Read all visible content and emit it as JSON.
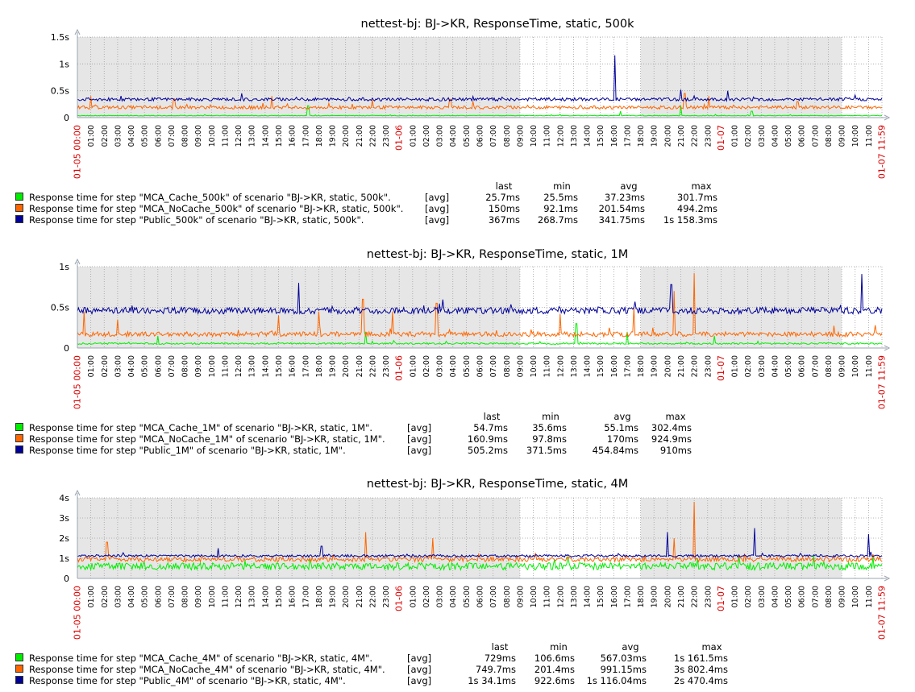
{
  "chart_data": [
    {
      "type": "line",
      "title": "nettest-bj: BJ->KR, ResponseTime, static, 500k",
      "y_ticks": [
        "0",
        "0.5s",
        "1s",
        "1.5s"
      ],
      "ylim": [
        0,
        1.5
      ],
      "y_unit": "s",
      "x_range": [
        "01-05 00:00",
        "01-07 11:59"
      ],
      "x_tick_labels": [
        "01-05 00:00",
        "01:00",
        "02:00",
        "03:00",
        "04:00",
        "05:00",
        "06:00",
        "07:00",
        "08:00",
        "09:00",
        "10:00",
        "11:00",
        "12:00",
        "13:00",
        "14:00",
        "15:00",
        "16:00",
        "17:00",
        "18:00",
        "19:00",
        "20:00",
        "21:00",
        "22:00",
        "23:00",
        "01-06",
        "01:00",
        "02:00",
        "03:00",
        "04:00",
        "05:00",
        "06:00",
        "07:00",
        "08:00",
        "09:00",
        "10:00",
        "11:00",
        "12:00",
        "13:00",
        "14:00",
        "15:00",
        "16:00",
        "17:00",
        "18:00",
        "19:00",
        "20:00",
        "21:00",
        "22:00",
        "23:00",
        "01-07",
        "01:00",
        "02:00",
        "03:00",
        "04:00",
        "05:00",
        "06:00",
        "07:00",
        "08:00",
        "09:00",
        "10:00",
        "11:00",
        "01-07 11:59"
      ],
      "grid": true,
      "shaded_periods": [
        [
          "01-05 00:00",
          "01-06 09:00"
        ],
        [
          "01-06 18:00",
          "01-07 09:00"
        ]
      ],
      "legend_headers": [
        "last",
        "min",
        "avg",
        "max"
      ],
      "series": [
        {
          "name": "Response time for step \"MCA_Cache_500k\" of scenario \"BJ->KR, static, 500k\".",
          "color": "#00ee00",
          "func": "[avg]",
          "last": "25.7ms",
          "min": "25.5ms",
          "avg": "37.23ms",
          "max": "301.7ms",
          "base": 0.037,
          "noise": 0.006,
          "spikes": [
            [
              17.2,
              0.22
            ],
            [
              40.5,
              0.12
            ],
            [
              45.0,
              0.22
            ],
            [
              50.3,
              0.12
            ]
          ]
        },
        {
          "name": "Response time for step \"MCA_NoCache_500k\" of scenario \"BJ->KR, static, 500k\".",
          "color": "#ff6600",
          "func": "[avg]",
          "last": "150ms",
          "min": "92.1ms",
          "avg": "201.54ms",
          "max": "494.2ms",
          "base": 0.19,
          "noise": 0.03,
          "spikes": [
            [
              1.0,
              0.4
            ],
            [
              7.2,
              0.35
            ],
            [
              14.5,
              0.4
            ],
            [
              22.0,
              0.33
            ],
            [
              27.8,
              0.34
            ],
            [
              45.3,
              0.45
            ],
            [
              47.1,
              0.4
            ],
            [
              53.7,
              0.3
            ]
          ]
        },
        {
          "name": "Response time for step \"Public_500k\" of scenario \"BJ->KR, static, 500k\".",
          "color": "#000099",
          "func": "[avg]",
          "last": "367ms",
          "min": "268.7ms",
          "avg": "341.75ms",
          "max": "1s 158.3ms",
          "base": 0.34,
          "noise": 0.03,
          "spikes": [
            [
              40.1,
              1.16
            ],
            [
              45.0,
              0.52
            ],
            [
              48.5,
              0.5
            ],
            [
              58.0,
              0.42
            ]
          ]
        }
      ]
    },
    {
      "type": "line",
      "title": "nettest-bj: BJ->KR, ResponseTime, static, 1M",
      "y_ticks": [
        "0",
        "0.5s",
        "1s"
      ],
      "ylim": [
        0,
        1.2
      ],
      "y_unit": "s",
      "x_range": [
        "01-05 00:00",
        "01-07 11:59"
      ],
      "x_tick_labels": [
        "01-05 00:00",
        "01:00",
        "02:00",
        "03:00",
        "04:00",
        "05:00",
        "06:00",
        "07:00",
        "08:00",
        "09:00",
        "10:00",
        "11:00",
        "12:00",
        "13:00",
        "14:00",
        "15:00",
        "16:00",
        "17:00",
        "18:00",
        "19:00",
        "20:00",
        "21:00",
        "22:00",
        "23:00",
        "01-06",
        "01:00",
        "02:00",
        "03:00",
        "04:00",
        "05:00",
        "06:00",
        "07:00",
        "08:00",
        "09:00",
        "10:00",
        "11:00",
        "12:00",
        "13:00",
        "14:00",
        "15:00",
        "16:00",
        "17:00",
        "18:00",
        "19:00",
        "20:00",
        "21:00",
        "22:00",
        "23:00",
        "01-07",
        "01:00",
        "02:00",
        "03:00",
        "04:00",
        "05:00",
        "06:00",
        "07:00",
        "08:00",
        "09:00",
        "10:00",
        "11:00",
        "01-07 11:59"
      ],
      "grid": true,
      "shaded_periods": [
        [
          "01-05 00:00",
          "01-06 09:00"
        ],
        [
          "01-06 18:00",
          "01-07 09:00"
        ]
      ],
      "legend_headers": [
        "last",
        "min",
        "avg",
        "max"
      ],
      "series": [
        {
          "name": "Response time for step \"MCA_Cache_1M\" of scenario \"BJ->KR, static, 1M\".",
          "color": "#00ee00",
          "func": "[avg]",
          "last": "54.7ms",
          "min": "35.6ms",
          "avg": "55.1ms",
          "max": "302.4ms",
          "base": 0.055,
          "noise": 0.01,
          "spikes": [
            [
              6.0,
              0.15
            ],
            [
              21.5,
              0.2
            ],
            [
              37.2,
              0.3
            ],
            [
              41.0,
              0.2
            ],
            [
              47.5,
              0.15
            ]
          ]
        },
        {
          "name": "Response time for step \"MCA_NoCache_1M\" of scenario \"BJ->KR, static, 1M\".",
          "color": "#ff6600",
          "func": "[avg]",
          "last": "160.9ms",
          "min": "97.8ms",
          "avg": "170ms",
          "max": "924.9ms",
          "base": 0.17,
          "noise": 0.03,
          "spikes": [
            [
              0.5,
              0.45
            ],
            [
              3.0,
              0.35
            ],
            [
              15.0,
              0.4
            ],
            [
              18.0,
              0.45
            ],
            [
              21.3,
              0.6
            ],
            [
              23.5,
              0.45
            ],
            [
              26.8,
              0.55
            ],
            [
              36.0,
              0.42
            ],
            [
              41.5,
              0.5
            ],
            [
              44.5,
              0.7
            ],
            [
              46.0,
              0.92
            ],
            [
              59.5,
              0.28
            ]
          ]
        },
        {
          "name": "Response time for step \"Public_1M\" of scenario \"BJ->KR, static, 1M\".",
          "color": "#000099",
          "func": "[avg]",
          "last": "505.2ms",
          "min": "371.5ms",
          "avg": "454.84ms",
          "max": "910ms",
          "base": 0.46,
          "noise": 0.04,
          "spikes": [
            [
              16.5,
              0.8
            ],
            [
              44.3,
              0.78
            ],
            [
              58.5,
              0.91
            ]
          ]
        }
      ]
    },
    {
      "type": "line",
      "title": "nettest-bj: BJ->KR, ResponseTime, static, 4M",
      "y_ticks": [
        "0",
        "1s",
        "2s",
        "3s",
        "4s"
      ],
      "ylim": [
        0,
        4
      ],
      "y_unit": "s",
      "x_range": [
        "01-05 00:00",
        "01-07 11:59"
      ],
      "x_tick_labels": [
        "01-05 00:00",
        "01:00",
        "02:00",
        "03:00",
        "04:00",
        "05:00",
        "06:00",
        "07:00",
        "08:00",
        "09:00",
        "10:00",
        "11:00",
        "12:00",
        "13:00",
        "14:00",
        "15:00",
        "16:00",
        "17:00",
        "18:00",
        "19:00",
        "20:00",
        "21:00",
        "22:00",
        "23:00",
        "01-06",
        "01:00",
        "02:00",
        "03:00",
        "04:00",
        "05:00",
        "06:00",
        "07:00",
        "08:00",
        "09:00",
        "10:00",
        "11:00",
        "12:00",
        "13:00",
        "14:00",
        "15:00",
        "16:00",
        "17:00",
        "18:00",
        "19:00",
        "20:00",
        "21:00",
        "22:00",
        "23:00",
        "01-07",
        "01:00",
        "02:00",
        "03:00",
        "04:00",
        "05:00",
        "06:00",
        "07:00",
        "08:00",
        "09:00",
        "10:00",
        "11:00",
        "01-07 11:59"
      ],
      "grid": true,
      "shaded_periods": [
        [
          "01-05 00:00",
          "01-06 09:00"
        ],
        [
          "01-06 18:00",
          "01-07 09:00"
        ]
      ],
      "legend_headers": [
        "last",
        "min",
        "avg",
        "max"
      ],
      "series": [
        {
          "name": "Response time for step \"MCA_Cache_4M\" of scenario \"BJ->KR, static, 4M\".",
          "color": "#00ee00",
          "func": "[avg]",
          "last": "729ms",
          "min": "106.6ms",
          "avg": "567.03ms",
          "max": "1s 161.5ms",
          "base": 0.6,
          "noise": 0.18,
          "spikes": []
        },
        {
          "name": "Response time for step \"MCA_NoCache_4M\" of scenario \"BJ->KR, static, 4M\".",
          "color": "#ff6600",
          "func": "[avg]",
          "last": "749.7ms",
          "min": "201.4ms",
          "avg": "991.15ms",
          "max": "3s 802.4ms",
          "base": 0.95,
          "noise": 0.12,
          "spikes": [
            [
              2.2,
              1.8
            ],
            [
              21.5,
              2.3
            ],
            [
              26.5,
              2.0
            ],
            [
              46.0,
              3.8
            ],
            [
              44.5,
              2.0
            ]
          ]
        },
        {
          "name": "Response time for step \"Public_4M\" of scenario \"BJ->KR, static, 4M\".",
          "color": "#000099",
          "func": "[avg]",
          "last": "1s 34.1ms",
          "min": "922.6ms",
          "avg": "1s 116.04ms",
          "max": "2s 470.4ms",
          "base": 1.12,
          "noise": 0.06,
          "spikes": [
            [
              10.5,
              1.5
            ],
            [
              18.2,
              1.6
            ],
            [
              44.0,
              2.3
            ],
            [
              50.5,
              2.5
            ],
            [
              59.0,
              2.2
            ]
          ]
        }
      ]
    }
  ]
}
